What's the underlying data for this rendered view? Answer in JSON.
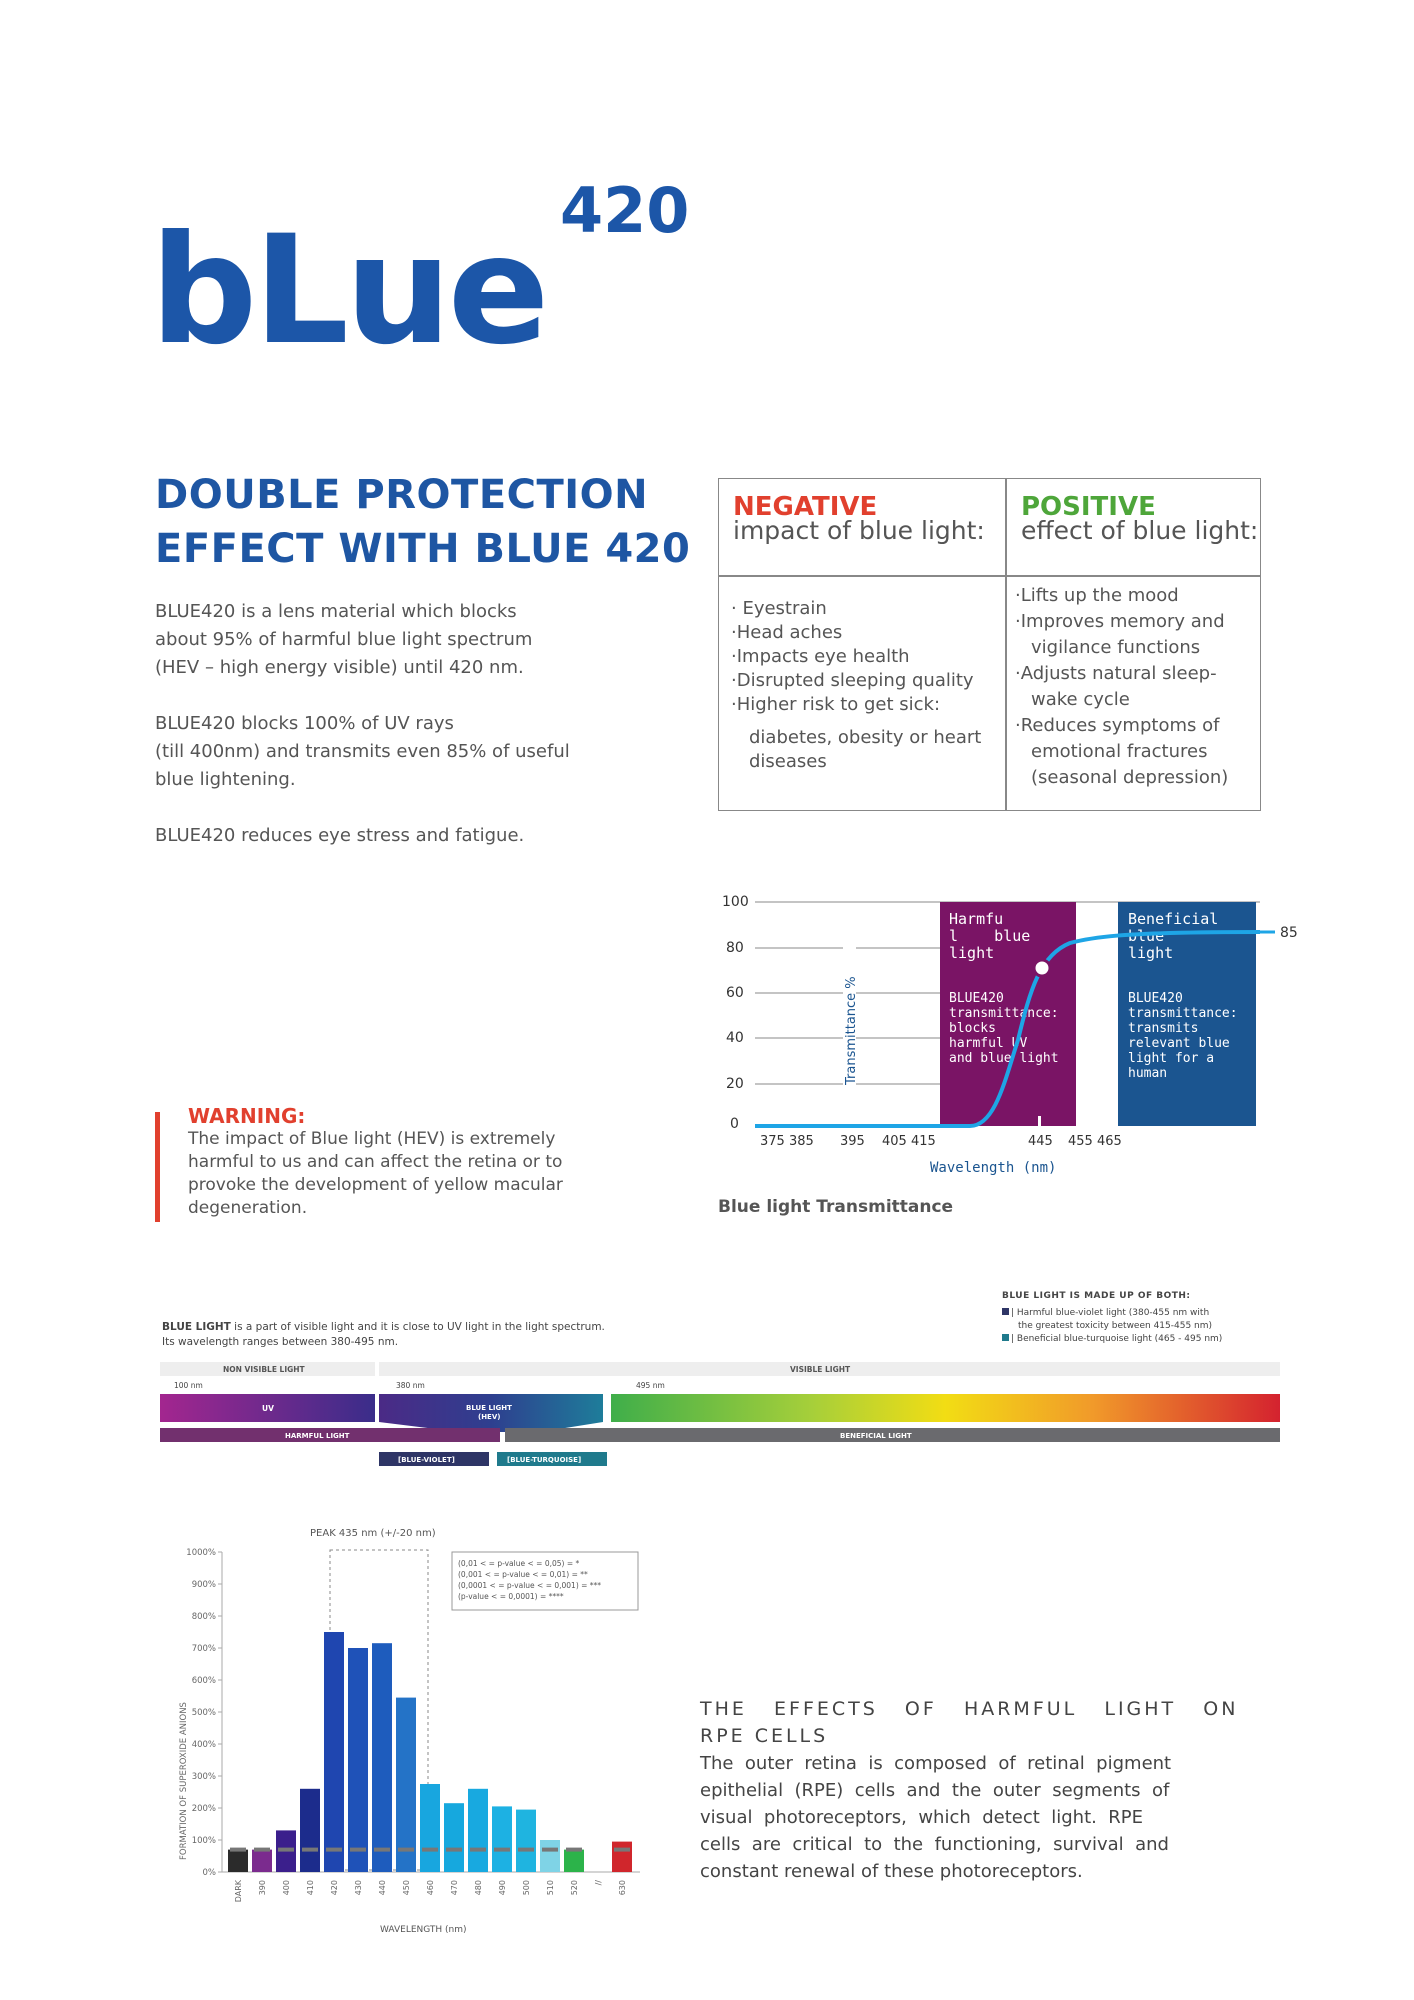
{
  "logo": {
    "word": "bLue",
    "superscript": "420"
  },
  "headline": {
    "line1": "DOUBLE PROTECTION",
    "line2": "EFFECT WITH BLUE 420"
  },
  "intro": {
    "p1": [
      "BLUE420 is a lens material which blocks",
      "about 95% of harmful blue light spectrum",
      "(HEV – high energy visible) until 420 nm."
    ],
    "p2": [
      "BLUE420 blocks 100% of UV rays",
      "(till 400nm) and transmits even 85% of useful",
      "blue lightening."
    ],
    "p3": "BLUE420 reduces eye stress and fatigue."
  },
  "impact_table": {
    "negative": {
      "title": "NEGATIVE",
      "subtitle": "impact of blue light:",
      "items": [
        "· Eyestrain",
        "·Head aches",
        "·Impacts eye health",
        "·Disrupted sleeping quality",
        "·Higher risk to get sick:"
      ],
      "sub_items": [
        "diabetes, obesity or heart",
        "diseases"
      ]
    },
    "positive": {
      "title": "POSITIVE",
      "subtitle": "effect of blue light:",
      "lines": [
        "·Lifts up the mood",
        "·Improves memory and",
        "vigilance functions",
        "·Adjusts natural sleep-",
        "wake cycle",
        "·Reduces symptoms of",
        "emotional fractures",
        "(seasonal depression)"
      ]
    }
  },
  "warning": {
    "title": "WARNING:",
    "lines": [
      "The impact of Blue light (HEV) is extremely",
      "harmful to us and can affect the retina or to",
      "provoke the development of yellow macular",
      "degeneration."
    ]
  },
  "transmittance_chart": {
    "caption": "Blue light Transmittance",
    "ylabel": "Transmittance %",
    "xlabel": "Wavelength (nm)",
    "y_ticks": [
      "100",
      "80",
      "60",
      "40",
      "20",
      "0"
    ],
    "x_ticks": [
      "375 385",
      "395",
      "405 415",
      "445",
      "455 465"
    ],
    "end_value": "85",
    "harmful_box": {
      "title": [
        "Harmfu",
        "l    blue",
        "light"
      ],
      "text": [
        "BLUE420",
        "transmittance:",
        "blocks",
        "harmful UV",
        "and blue light"
      ],
      "color": "#7a1465"
    },
    "beneficial_box": {
      "title": [
        "Beneficial",
        "blue",
        "light"
      ],
      "text": [
        "BLUE420",
        "transmittance:",
        "transmits",
        "relevant blue",
        "light for a",
        "human"
      ],
      "color": "#1b5590"
    },
    "curve_color": "#1ea5e6"
  },
  "spectrum": {
    "intro_bold": "BLUE LIGHT",
    "intro_rest": " is a part of visible light and it is close to UV light in the light spectrum.",
    "intro_line2": "Its wavelength ranges between 380-495 nm.",
    "made_of_title": "BLUE LIGHT IS MADE UP OF BOTH:",
    "made_of_items": [
      "| Harmful blue-violet light (380-455 nm with",
      "the greatest toxicity between 415-455 nm)",
      "| Beneficial blue-turquoise light (465 - 495 nm)"
    ],
    "non_visible": "NON VISIBLE LIGHT",
    "visible": "VISIBLE LIGHT",
    "mark_100": "100 nm",
    "mark_380": "380 nm",
    "mark_495": "495 nm",
    "uv": "UV",
    "blue_light": "BLUE LIGHT",
    "hev": "(HEV)",
    "harmful": "HARMFUL LIGHT",
    "beneficial": "BENEFICIAL LIGHT",
    "blue_violet": "[BLUE-VIOLET]",
    "blue_turquoise": "[BLUE-TURQUOISE]"
  },
  "rpe_chart": {
    "peak_label": "PEAK 435 nm (+/-20 nm)",
    "ylabel": "FORMATION OF SUPEROXIDE ANIONS",
    "xlabel": "WAVELENGTH (nm)",
    "y_ticks": [
      "1000%",
      "900%",
      "800%",
      "700%",
      "600%",
      "500%",
      "400%",
      "300%",
      "200%",
      "100%",
      "0%"
    ],
    "legend": [
      "(0,01 < = p-value < = 0,05) = *",
      "(0,001 < = p-value < = 0,01) = **",
      "(0,0001 < = p-value < = 0,001) = ***",
      "(p-value < = 0,0001) = ****"
    ],
    "chart_data": {
      "type": "bar",
      "categories": [
        "DARK",
        "390",
        "400",
        "410",
        "420",
        "430",
        "440",
        "450",
        "460",
        "470",
        "480",
        "490",
        "500",
        "510",
        "520",
        "//",
        "630"
      ],
      "values": [
        70,
        70,
        130,
        260,
        750,
        700,
        715,
        545,
        275,
        215,
        260,
        205,
        195,
        100,
        70,
        null,
        95
      ],
      "colors": [
        "#2b2b2b",
        "#7b2b8e",
        "#3b1f8c",
        "#1c2c8c",
        "#1f46b0",
        "#1f52b8",
        "#1e5cbd",
        "#2473c7",
        "#18a6df",
        "#16a8de",
        "#18a9e0",
        "#1db1e3",
        "#1fb4e0",
        "#7fd3e6",
        "#2cb34a",
        null,
        "#d0262c"
      ],
      "ylim": [
        0,
        1000
      ],
      "baseline": 70
    }
  },
  "rpe": {
    "title": [
      "THE   EFFECTS   OF   HARMFUL   LIGHT   ON",
      "RPE CELLS"
    ],
    "body": [
      "The  outer  retina  is  composed  of  retinal  pigment",
      "epithelial  (RPE)  cells  and  the  outer  segments  of",
      "visual  photoreceptors,  which  detect  light.  RPE",
      "cells  are  critical  to  the  functioning,  survival  and",
      "constant renewal of these photoreceptors."
    ]
  }
}
